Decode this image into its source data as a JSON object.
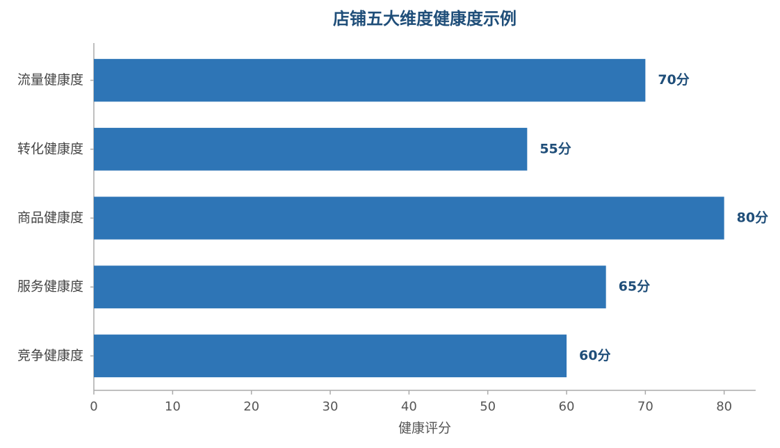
{
  "chart_data": {
    "type": "hbar",
    "title": "店铺五大维度健康度示例",
    "x_label": "健康评分",
    "categories": [
      "流量健康度",
      "转化健康度",
      "商品健康度",
      "服务健康度",
      "竞争健康度"
    ],
    "values": [
      70,
      55,
      80,
      65,
      60
    ],
    "value_labels": [
      "70分",
      "55分",
      "80分",
      "65分",
      "60分"
    ],
    "color": "#2e75b6",
    "xlim": [
      0,
      84
    ],
    "xticks": [
      0,
      10,
      20,
      30,
      40,
      50,
      60,
      70,
      80
    ],
    "grid": false
  }
}
